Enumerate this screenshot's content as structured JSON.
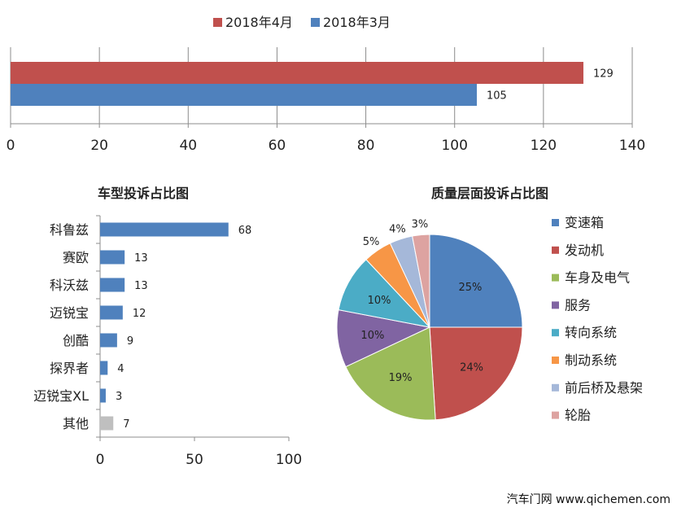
{
  "chart_data": [
    {
      "type": "bar",
      "orientation": "horizontal",
      "title": "",
      "categories": [
        ""
      ],
      "series": [
        {
          "name": "2018年4月",
          "color": "#C0504D",
          "values": [
            129
          ]
        },
        {
          "name": "2018年3月",
          "color": "#4F81BD",
          "values": [
            105
          ]
        }
      ],
      "xlim": [
        0,
        140
      ],
      "xticks": [
        0,
        20,
        40,
        60,
        80,
        100,
        120,
        140
      ],
      "grid": true,
      "legend": "top"
    },
    {
      "type": "bar",
      "orientation": "horizontal",
      "title": "车型投诉占比图",
      "categories": [
        "科鲁兹",
        "赛欧",
        "科沃兹",
        "迈锐宝",
        "创酷",
        "探界者",
        "迈锐宝XL",
        "其他"
      ],
      "values": [
        68,
        13,
        13,
        12,
        9,
        4,
        3,
        7
      ],
      "colors": [
        "#4F81BD",
        "#4F81BD",
        "#4F81BD",
        "#4F81BD",
        "#4F81BD",
        "#4F81BD",
        "#4F81BD",
        "#BFBFBF"
      ],
      "xlim": [
        0,
        100
      ],
      "xticks": [
        0,
        50,
        100
      ],
      "grid": false
    },
    {
      "type": "pie",
      "title": "质量层面投诉占比图",
      "labels": [
        "变速箱",
        "发动机",
        "车身及电气",
        "服务",
        "转向系统",
        "制动系统",
        "前后桥及悬架",
        "轮胎"
      ],
      "values": [
        25,
        24,
        19,
        10,
        10,
        5,
        4,
        3
      ],
      "value_labels": [
        "25%",
        "24%",
        "19%",
        "10%",
        "10%",
        "5%",
        "4%",
        "3%"
      ],
      "colors": [
        "#4F81BD",
        "#C0504D",
        "#9BBB59",
        "#8064A2",
        "#4BACC6",
        "#F79646",
        "#A5B8D9",
        "#DDA3A1"
      ],
      "legend": "right"
    }
  ],
  "watermark": "汽车门网  www.qichemen.com"
}
